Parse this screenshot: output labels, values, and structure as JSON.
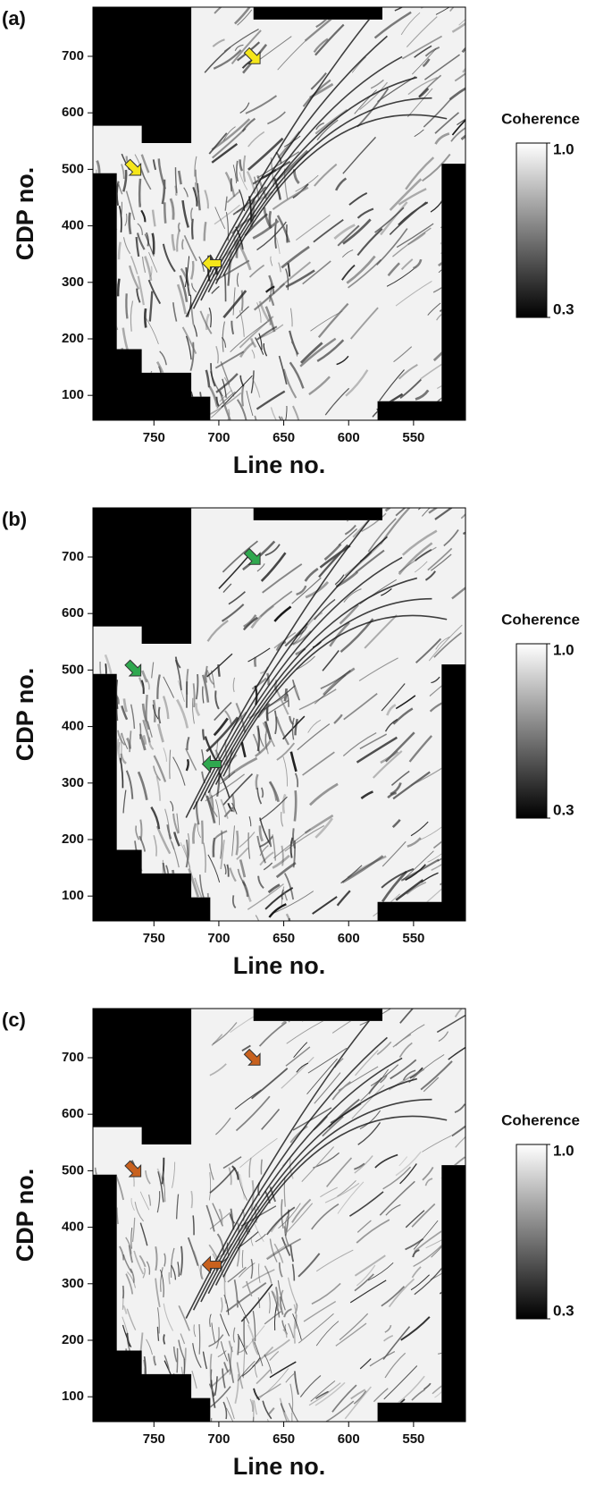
{
  "chart_data": [
    {
      "type": "image",
      "title": "(a)",
      "xlabel": "Line no.",
      "ylabel": "CDP no.",
      "xlim": [
        797,
        510
      ],
      "xticks": [
        750,
        700,
        650,
        600,
        550
      ],
      "ylim": [
        56,
        787
      ],
      "yticks": [
        100,
        200,
        300,
        400,
        500,
        600,
        700
      ],
      "annotation_color": "#f5e61a",
      "colorbar": {
        "label": "Coherence",
        "colors": [
          "#000000",
          "#ffffff"
        ],
        "lim": [
          0.3,
          1
        ],
        "ticks": [
          0.3,
          {
            "value": 1,
            "label": "1.0"
          }
        ]
      }
    },
    {
      "type": "image",
      "title": "(b)",
      "xlabel": "Line no.",
      "ylabel": "CDP no.",
      "xlim": [
        797,
        510
      ],
      "xticks": [
        750,
        700,
        650,
        600,
        550
      ],
      "ylim": [
        56,
        787
      ],
      "yticks": [
        100,
        200,
        300,
        400,
        500,
        600,
        700
      ],
      "annotation_color": "#2fa84f",
      "colorbar": {
        "label": "Coherence",
        "colors": [
          "#000000",
          "#ffffff"
        ],
        "lim": [
          0.3,
          1
        ],
        "ticks": [
          0.3,
          {
            "value": 1,
            "label": "1.0"
          }
        ]
      }
    },
    {
      "type": "image",
      "title": "(c)",
      "xlabel": "Line no.",
      "ylabel": "CDP no.",
      "xlim": [
        797,
        510
      ],
      "xticks": [
        750,
        700,
        650,
        600,
        550
      ],
      "ylim": [
        56,
        787
      ],
      "yticks": [
        100,
        200,
        300,
        400,
        500,
        600,
        700
      ],
      "annotation_color": "#c8611e",
      "colorbar": {
        "label": "Coherence",
        "colors": [
          "#000000",
          "#ffffff"
        ],
        "lim": [
          0.3,
          1
        ],
        "ticks": [
          0.3,
          {
            "value": 1,
            "label": "1.0"
          }
        ]
      }
    }
  ]
}
